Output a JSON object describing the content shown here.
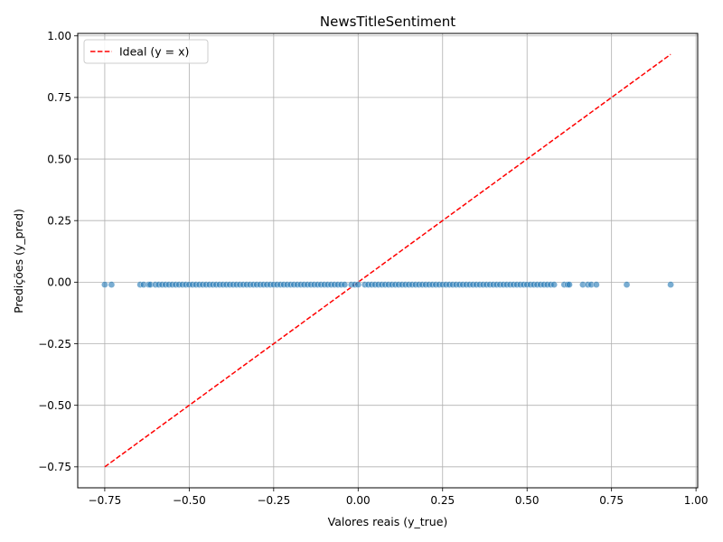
{
  "chart_data": {
    "type": "scatter",
    "title": "NewsTitleSentiment",
    "xlabel": "Valores reais (y_true)",
    "ylabel": "Predições (y_pred)",
    "xlim": [
      -0.83,
      1.005
    ],
    "ylim": [
      -0.835,
      1.01
    ],
    "xticks": [
      -0.75,
      -0.5,
      -0.25,
      0.0,
      0.25,
      0.5,
      0.75,
      1.0
    ],
    "xtick_labels": [
      "−0.75",
      "−0.50",
      "−0.25",
      "0.00",
      "0.25",
      "0.50",
      "0.75",
      "1.00"
    ],
    "yticks": [
      -0.75,
      -0.5,
      -0.25,
      0.0,
      0.25,
      0.5,
      0.75,
      1.0
    ],
    "ytick_labels": [
      "−0.75",
      "−0.50",
      "−0.25",
      "0.00",
      "0.25",
      "0.50",
      "0.75",
      "1.00"
    ],
    "grid": true,
    "legend": {
      "position": "top-left",
      "entries": [
        "Ideal (y = x)"
      ]
    },
    "ideal_line": {
      "x": [
        -0.75,
        0.925
      ],
      "y": [
        -0.75,
        0.925
      ],
      "color": "#ff0000",
      "style": "dashed"
    },
    "scatter_color": "#1f77b4",
    "points_y": -0.01,
    "points_x": [
      -0.75,
      -0.73,
      -0.645,
      -0.635,
      -0.62,
      -0.615,
      -0.6,
      -0.59,
      -0.58,
      -0.57,
      -0.56,
      -0.55,
      -0.54,
      -0.53,
      -0.52,
      -0.51,
      -0.5,
      -0.49,
      -0.48,
      -0.47,
      -0.46,
      -0.45,
      -0.44,
      -0.43,
      -0.42,
      -0.41,
      -0.4,
      -0.39,
      -0.38,
      -0.37,
      -0.36,
      -0.35,
      -0.34,
      -0.33,
      -0.32,
      -0.31,
      -0.3,
      -0.29,
      -0.28,
      -0.27,
      -0.26,
      -0.25,
      -0.24,
      -0.23,
      -0.22,
      -0.21,
      -0.2,
      -0.19,
      -0.18,
      -0.17,
      -0.16,
      -0.15,
      -0.14,
      -0.13,
      -0.12,
      -0.11,
      -0.1,
      -0.09,
      -0.08,
      -0.07,
      -0.06,
      -0.05,
      -0.04,
      -0.02,
      -0.01,
      0.0,
      0.02,
      0.03,
      0.04,
      0.05,
      0.06,
      0.07,
      0.08,
      0.09,
      0.1,
      0.11,
      0.12,
      0.13,
      0.14,
      0.15,
      0.16,
      0.17,
      0.18,
      0.19,
      0.2,
      0.21,
      0.22,
      0.23,
      0.24,
      0.25,
      0.26,
      0.27,
      0.28,
      0.29,
      0.3,
      0.31,
      0.32,
      0.33,
      0.34,
      0.35,
      0.36,
      0.37,
      0.38,
      0.39,
      0.4,
      0.41,
      0.42,
      0.43,
      0.44,
      0.45,
      0.46,
      0.47,
      0.48,
      0.49,
      0.5,
      0.51,
      0.52,
      0.53,
      0.54,
      0.55,
      0.56,
      0.57,
      0.58,
      0.61,
      0.62,
      0.625,
      0.665,
      0.68,
      0.69,
      0.705,
      0.795,
      0.925
    ]
  }
}
